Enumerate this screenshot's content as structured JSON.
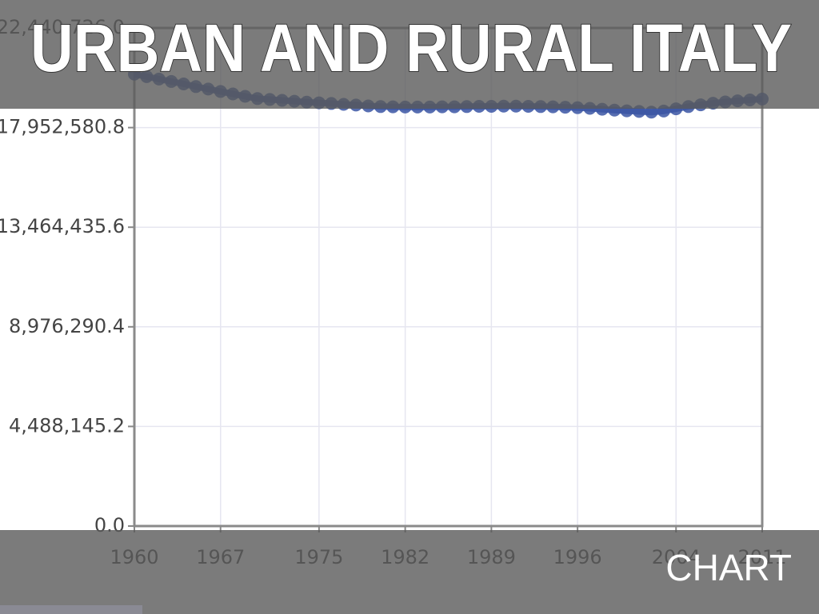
{
  "chart_data": {
    "type": "line",
    "title": "URBAN AND RURAL ITALY",
    "label": "CHART",
    "x": [
      1960,
      1961,
      1962,
      1963,
      1964,
      1965,
      1966,
      1967,
      1968,
      1969,
      1970,
      1971,
      1972,
      1973,
      1974,
      1975,
      1976,
      1977,
      1978,
      1979,
      1980,
      1981,
      1982,
      1983,
      1984,
      1985,
      1986,
      1987,
      1988,
      1989,
      1990,
      1991,
      1992,
      1993,
      1994,
      1995,
      1996,
      1997,
      1998,
      1999,
      2000,
      2001,
      2002,
      2003,
      2004,
      2005,
      2006,
      2007,
      2008,
      2009,
      2010,
      2011
    ],
    "series": [
      {
        "color": "#3a55a3",
        "values": [
          20360000,
          20250000,
          20140000,
          20030000,
          19920000,
          19800000,
          19690000,
          19580000,
          19470000,
          19360000,
          19260000,
          19220000,
          19180000,
          19140000,
          19100000,
          19070000,
          19040000,
          19000000,
          18970000,
          18930000,
          18900000,
          18890000,
          18880000,
          18880000,
          18880000,
          18890000,
          18890000,
          18900000,
          18910000,
          18910000,
          18920000,
          18920000,
          18910000,
          18900000,
          18890000,
          18870000,
          18850000,
          18820000,
          18780000,
          18740000,
          18710000,
          18680000,
          18650000,
          18700000,
          18800000,
          18900000,
          18980000,
          19050000,
          19110000,
          19160000,
          19200000,
          19240000
        ]
      }
    ],
    "xlim": [
      1960,
      2011
    ],
    "xticks": [
      1960,
      1967,
      1975,
      1982,
      1989,
      1996,
      2004,
      2011
    ],
    "ylim": [
      0,
      22440726.0
    ],
    "yticks": [
      {
        "value": 0,
        "label": "0.0"
      },
      {
        "value": 4488145.2,
        "label": "4,488,145.2"
      },
      {
        "value": 8976290.4,
        "label": "8,976,290.4"
      },
      {
        "value": 13464435.6,
        "label": "13,464,435.6"
      },
      {
        "value": 17952580.8,
        "label": "17,952,580.8"
      },
      {
        "value": 22440726.0,
        "label": "22,440,726.0"
      }
    ],
    "grid": true
  }
}
